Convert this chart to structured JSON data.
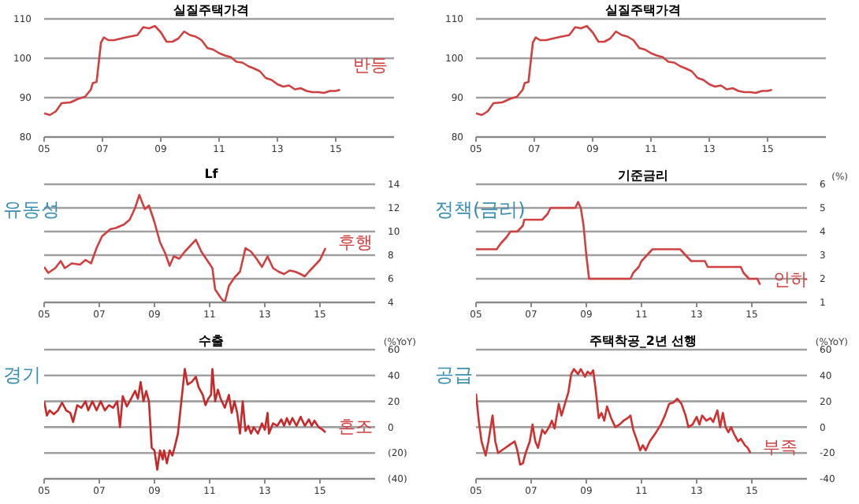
{
  "chart_data": [
    {
      "type": "line",
      "title": "실질주택가격",
      "color": "#d04040",
      "grid": "y",
      "xlim": [
        2005,
        2017
      ],
      "xticks": [
        {
          "value": 2005,
          "label": "05"
        },
        {
          "value": 2007,
          "label": "07"
        },
        {
          "value": 2009,
          "label": "09"
        },
        {
          "value": 2011,
          "label": "11"
        },
        {
          "value": 2013,
          "label": "13"
        },
        {
          "value": 2015,
          "label": "15"
        }
      ],
      "ylim": [
        80,
        110
      ],
      "yticks": [
        80,
        90,
        100,
        110
      ],
      "x": [
        2005.0,
        2005.2,
        2005.4,
        2005.6,
        2005.9,
        2006.2,
        2006.4,
        2006.6,
        2006.67,
        2006.8,
        2006.95,
        2007.05,
        2007.2,
        2007.4,
        2007.8,
        2008.2,
        2008.4,
        2008.6,
        2008.8,
        2009.0,
        2009.2,
        2009.4,
        2009.6,
        2009.8,
        2010.0,
        2010.2,
        2010.4,
        2010.6,
        2010.8,
        2011.0,
        2011.2,
        2011.4,
        2011.6,
        2011.8,
        2012.0,
        2012.2,
        2012.4,
        2012.6,
        2012.8,
        2013.0,
        2013.2,
        2013.4,
        2013.6,
        2013.8,
        2014.0,
        2014.2,
        2014.4,
        2014.6,
        2014.8,
        2015.0,
        2015.15
      ],
      "values": [
        86.0,
        85.6,
        86.5,
        88.6,
        88.8,
        89.8,
        90.2,
        92.0,
        93.7,
        94.0,
        104.0,
        105.3,
        104.6,
        104.6,
        105.3,
        105.9,
        107.9,
        107.6,
        108.2,
        106.6,
        104.2,
        104.2,
        105.0,
        106.8,
        105.9,
        105.5,
        104.6,
        102.6,
        102.2,
        101.3,
        100.7,
        100.3,
        99.1,
        98.9,
        98.0,
        97.4,
        96.7,
        95.0,
        94.5,
        93.4,
        92.8,
        93.1,
        92.1,
        92.4,
        91.7,
        91.4,
        91.4,
        91.2,
        91.7,
        91.7,
        92.0
      ],
      "annotations": [
        "반등"
      ]
    },
    {
      "type": "line",
      "title": "실질주택가격",
      "color": "#d04040",
      "grid": "y",
      "xlim": [
        2005,
        2017
      ],
      "xticks": [
        {
          "value": 2005,
          "label": "05"
        },
        {
          "value": 2007,
          "label": "07"
        },
        {
          "value": 2009,
          "label": "09"
        },
        {
          "value": 2011,
          "label": "11"
        },
        {
          "value": 2013,
          "label": "13"
        },
        {
          "value": 2015,
          "label": "15"
        }
      ],
      "ylim": [
        80,
        110
      ],
      "yticks": [
        80,
        90,
        100,
        110
      ],
      "x": [
        2005.0,
        2005.2,
        2005.4,
        2005.6,
        2005.9,
        2006.2,
        2006.4,
        2006.6,
        2006.67,
        2006.8,
        2006.95,
        2007.05,
        2007.2,
        2007.4,
        2007.8,
        2008.2,
        2008.4,
        2008.6,
        2008.8,
        2009.0,
        2009.2,
        2009.4,
        2009.6,
        2009.8,
        2010.0,
        2010.2,
        2010.4,
        2010.6,
        2010.8,
        2011.0,
        2011.2,
        2011.4,
        2011.6,
        2011.8,
        2012.0,
        2012.2,
        2012.4,
        2012.6,
        2012.8,
        2013.0,
        2013.2,
        2013.4,
        2013.6,
        2013.8,
        2014.0,
        2014.2,
        2014.4,
        2014.6,
        2014.8,
        2015.0,
        2015.15
      ],
      "values": [
        86.0,
        85.6,
        86.5,
        88.6,
        88.8,
        89.8,
        90.2,
        92.0,
        93.7,
        94.0,
        104.0,
        105.3,
        104.6,
        104.6,
        105.3,
        105.9,
        107.9,
        107.6,
        108.2,
        106.6,
        104.2,
        104.2,
        105.0,
        106.8,
        105.9,
        105.5,
        104.6,
        102.6,
        102.2,
        101.3,
        100.7,
        100.3,
        99.1,
        98.9,
        98.0,
        97.4,
        96.7,
        95.0,
        94.5,
        93.4,
        92.8,
        93.1,
        92.1,
        92.4,
        91.7,
        91.4,
        91.4,
        91.2,
        91.7,
        91.7,
        92.0
      ]
    },
    {
      "type": "line",
      "title": "Lf",
      "color": "#d04040",
      "grid": "y",
      "xlim": [
        2005,
        2017
      ],
      "xticks": [
        {
          "value": 2005,
          "label": "05"
        },
        {
          "value": 2007,
          "label": "07"
        },
        {
          "value": 2009,
          "label": "09"
        },
        {
          "value": 2011,
          "label": "11"
        },
        {
          "value": 2013,
          "label": "13"
        },
        {
          "value": 2015,
          "label": "15"
        }
      ],
      "ylim": [
        4,
        14
      ],
      "yticks": [
        4,
        6,
        8,
        10,
        12,
        14
      ],
      "x": [
        2005.0,
        2005.15,
        2005.4,
        2005.6,
        2005.75,
        2006.0,
        2006.3,
        2006.5,
        2006.7,
        2006.9,
        2007.1,
        2007.4,
        2007.6,
        2007.9,
        2008.1,
        2008.3,
        2008.45,
        2008.65,
        2008.8,
        2009.0,
        2009.2,
        2009.4,
        2009.55,
        2009.7,
        2009.9,
        2010.1,
        2010.3,
        2010.5,
        2010.7,
        2010.9,
        2011.1,
        2011.2,
        2011.4,
        2011.55,
        2011.7,
        2011.9,
        2012.1,
        2012.3,
        2012.5,
        2012.7,
        2012.9,
        2013.1,
        2013.3,
        2013.5,
        2013.7,
        2013.9,
        2014.1,
        2014.3,
        2014.45,
        2014.6,
        2014.8,
        2015.0,
        2015.2
      ],
      "values": [
        7.0,
        6.5,
        6.9,
        7.5,
        6.9,
        7.3,
        7.2,
        7.6,
        7.3,
        8.6,
        9.6,
        10.2,
        10.3,
        10.6,
        11.0,
        12.0,
        13.1,
        11.9,
        12.2,
        10.8,
        9.1,
        8.1,
        7.1,
        7.9,
        7.7,
        8.3,
        8.8,
        9.3,
        8.3,
        7.6,
        6.9,
        5.1,
        4.4,
        4.0,
        5.4,
        6.1,
        6.6,
        8.6,
        8.3,
        7.7,
        7.0,
        7.9,
        6.9,
        6.6,
        6.4,
        6.7,
        6.6,
        6.4,
        6.2,
        6.6,
        7.1,
        7.6,
        8.6
      ],
      "annotations": [
        "유동성",
        "후행"
      ]
    },
    {
      "type": "line",
      "title": "기준금리",
      "ylabel": "(%)",
      "color": "#d04040",
      "grid": "y",
      "xlim": [
        2005,
        2017
      ],
      "xticks": [
        {
          "value": 2005,
          "label": "05"
        },
        {
          "value": 2007,
          "label": "07"
        },
        {
          "value": 2009,
          "label": "09"
        },
        {
          "value": 2011,
          "label": "11"
        },
        {
          "value": 2013,
          "label": "13"
        },
        {
          "value": 2015,
          "label": "15"
        }
      ],
      "ylim": [
        1,
        6
      ],
      "yticks": [
        1,
        2,
        3,
        4,
        5,
        6
      ],
      "x": [
        2005.0,
        2005.75,
        2005.9,
        2006.1,
        2006.25,
        2006.5,
        2006.7,
        2006.75,
        2007.4,
        2007.6,
        2007.7,
        2008.6,
        2008.7,
        2008.8,
        2008.9,
        2009.0,
        2009.1,
        2010.6,
        2010.7,
        2010.9,
        2011.0,
        2011.2,
        2011.4,
        2012.4,
        2012.6,
        2012.8,
        2013.3,
        2013.4,
        2014.6,
        2014.7,
        2014.9,
        2015.2,
        2015.3
      ],
      "values": [
        3.25,
        3.25,
        3.5,
        3.75,
        4.0,
        4.0,
        4.25,
        4.5,
        4.5,
        4.75,
        5.0,
        5.0,
        5.25,
        5.0,
        4.25,
        3.0,
        2.0,
        2.0,
        2.25,
        2.5,
        2.75,
        3.0,
        3.25,
        3.25,
        3.0,
        2.75,
        2.75,
        2.5,
        2.5,
        2.25,
        2.0,
        2.0,
        1.75
      ],
      "annotations": [
        "정책(금리)",
        "인하"
      ]
    },
    {
      "type": "line",
      "title": "수출",
      "ylabel": "(%YoY)",
      "color": "#c82828",
      "grid": "y",
      "xlim": [
        2005,
        2017
      ],
      "xticks": [
        {
          "value": 2005,
          "label": "05"
        },
        {
          "value": 2007,
          "label": "07"
        },
        {
          "value": 2009,
          "label": "09"
        },
        {
          "value": 2011,
          "label": "11"
        },
        {
          "value": 2013,
          "label": "13"
        },
        {
          "value": 2015,
          "label": "15"
        }
      ],
      "ylim": [
        -40,
        60
      ],
      "yticks": [
        {
          "value": -40,
          "label": "(40)"
        },
        {
          "value": -20,
          "label": "(20)"
        },
        0,
        20,
        40,
        60
      ],
      "x": [
        2005.0,
        2005.1,
        2005.2,
        2005.35,
        2005.5,
        2005.65,
        2005.8,
        2005.95,
        2006.05,
        2006.2,
        2006.35,
        2006.5,
        2006.6,
        2006.75,
        2006.9,
        2007.05,
        2007.2,
        2007.35,
        2007.5,
        2007.65,
        2007.75,
        2007.85,
        2008.0,
        2008.15,
        2008.3,
        2008.4,
        2008.5,
        2008.6,
        2008.7,
        2008.8,
        2008.9,
        2009.0,
        2009.1,
        2009.2,
        2009.3,
        2009.35,
        2009.45,
        2009.55,
        2009.65,
        2009.75,
        2009.85,
        2009.95,
        2010.1,
        2010.2,
        2010.35,
        2010.5,
        2010.6,
        2010.75,
        2010.85,
        2010.95,
        2011.05,
        2011.1,
        2011.2,
        2011.3,
        2011.4,
        2011.55,
        2011.7,
        2011.8,
        2011.9,
        2012.0,
        2012.1,
        2012.2,
        2012.3,
        2012.4,
        2012.5,
        2012.6,
        2012.75,
        2012.9,
        2013.0,
        2013.1,
        2013.15,
        2013.3,
        2013.45,
        2013.6,
        2013.7,
        2013.8,
        2013.9,
        2014.0,
        2014.15,
        2014.3,
        2014.45,
        2014.6,
        2014.7,
        2014.8,
        2014.95,
        2015.1,
        2015.2
      ],
      "values": [
        20,
        9,
        13,
        10,
        13,
        19,
        13,
        11,
        4,
        17,
        15,
        20,
        13,
        20,
        13,
        20,
        13,
        17,
        15,
        20,
        0,
        24,
        16,
        22,
        28,
        22,
        35,
        20,
        28,
        20,
        -16,
        -18,
        -33,
        -18,
        -25,
        -18,
        -28,
        -18,
        -22,
        -14,
        -5,
        15,
        45,
        33,
        35,
        39,
        31,
        25,
        17,
        22,
        25,
        45,
        20,
        29,
        22,
        15,
        25,
        11,
        20,
        11,
        -5,
        20,
        -3,
        1,
        -5,
        0,
        -5,
        3,
        -2,
        11,
        -5,
        3,
        1,
        6,
        1,
        7,
        2,
        7,
        1,
        8,
        1,
        6,
        1,
        5,
        0,
        -2,
        -4
      ],
      "annotations": [
        "경기",
        "혼조"
      ]
    },
    {
      "type": "line",
      "title": "주택착공_2년 선행",
      "ylabel": "(%YoY)",
      "color": "#d03030",
      "grid": "y",
      "xlim": [
        2005,
        2017
      ],
      "xticks": [
        {
          "value": 2005,
          "label": "05"
        },
        {
          "value": 2007,
          "label": "07"
        },
        {
          "value": 2009,
          "label": "09"
        },
        {
          "value": 2011,
          "label": "11"
        },
        {
          "value": 2013,
          "label": "13"
        },
        {
          "value": 2015,
          "label": "15"
        }
      ],
      "ylim": [
        -40,
        60
      ],
      "yticks": [
        -40,
        -20,
        0,
        20,
        40,
        60
      ],
      "x": [
        2005.0,
        2005.1,
        2005.2,
        2005.35,
        2005.45,
        2005.6,
        2005.7,
        2005.8,
        2006.0,
        2006.2,
        2006.4,
        2006.5,
        2006.6,
        2006.7,
        2006.8,
        2006.95,
        2007.05,
        2007.15,
        2007.25,
        2007.4,
        2007.5,
        2007.65,
        2007.75,
        2007.85,
        2008.0,
        2008.1,
        2008.25,
        2008.35,
        2008.45,
        2008.55,
        2008.7,
        2008.8,
        2008.95,
        2009.05,
        2009.15,
        2009.25,
        2009.35,
        2009.45,
        2009.55,
        2009.65,
        2009.75,
        2009.9,
        2010.05,
        2010.2,
        2010.35,
        2010.5,
        2010.6,
        2010.7,
        2010.85,
        2010.95,
        2011.05,
        2011.15,
        2011.3,
        2011.5,
        2011.7,
        2011.85,
        2012.0,
        2012.15,
        2012.3,
        2012.45,
        2012.6,
        2012.7,
        2012.85,
        2013.0,
        2013.1,
        2013.2,
        2013.35,
        2013.5,
        2013.6,
        2013.75,
        2013.85,
        2013.95,
        2014.05,
        2014.15,
        2014.25,
        2014.35,
        2014.5,
        2014.6,
        2014.75,
        2014.85,
        2014.95
      ],
      "values": [
        26,
        5,
        -11,
        -22,
        -11,
        9,
        -11,
        -20,
        -17,
        -14,
        -11,
        -18,
        -29,
        -28,
        -20,
        -11,
        2,
        -11,
        -16,
        -2,
        -5,
        0,
        5,
        -1,
        18,
        9,
        20,
        27,
        41,
        45,
        41,
        45,
        39,
        43,
        41,
        44,
        27,
        7,
        11,
        5,
        16,
        7,
        0,
        2,
        5,
        7,
        9,
        -2,
        -11,
        -18,
        -14,
        -18,
        -11,
        -5,
        2,
        9,
        18,
        19,
        22,
        18,
        9,
        0,
        2,
        8,
        2,
        9,
        5,
        7,
        4,
        13,
        0,
        11,
        0,
        -4,
        0,
        -5,
        -11,
        -9,
        -14,
        -16,
        -20
      ],
      "annotations": [
        "공급",
        "부족"
      ]
    }
  ]
}
